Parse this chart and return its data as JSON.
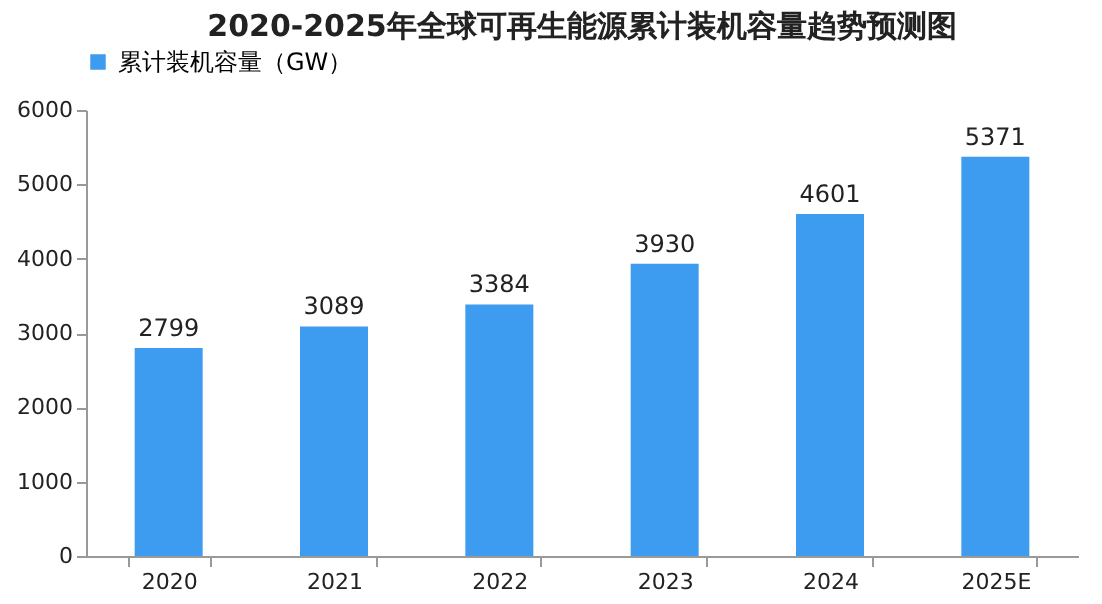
{
  "chart_data": {
    "type": "bar",
    "title": "2020-2025年全球可再生能源累计装机容量趋势预测图",
    "categories": [
      "2020",
      "2021",
      "2022",
      "2023",
      "2024",
      "2025E"
    ],
    "series": [
      {
        "name": "累计装机容量（GW）",
        "color": "#3d9cf0",
        "values": [
          2799,
          3089,
          3384,
          3930,
          4601,
          5371
        ]
      }
    ],
    "ylim": [
      0,
      6000
    ],
    "yticks": [
      0,
      1000,
      2000,
      3000,
      4000,
      5000,
      6000
    ],
    "grid": false,
    "legend": "top",
    "data_labels": true
  }
}
